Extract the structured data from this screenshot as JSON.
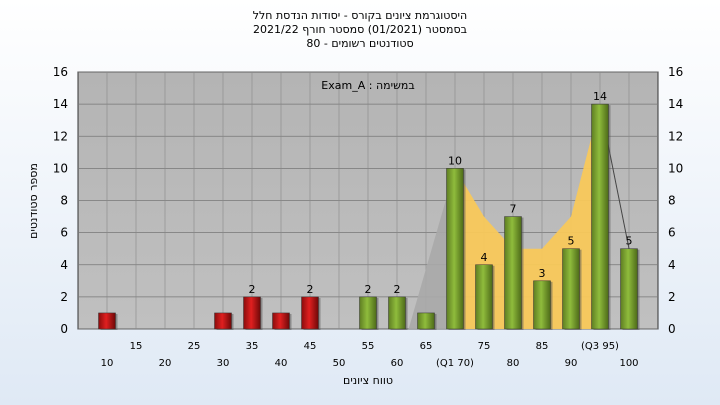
{
  "title_lines": [
    "היסטוגרמת ציונים בקורס - יסודות הנדסת חלל",
    "בסמסטר (01/2021) סמסטר חורף 2021/22",
    "סטודנטים רשומים - 80"
  ],
  "chart_data": {
    "type": "bar",
    "annotation": "במשימה : Exam_A",
    "xlabel": "טווח ציונים",
    "ylabel": "מספר סטודנטים",
    "ylim": [
      0,
      16
    ],
    "y_ticks": [
      0,
      2,
      4,
      6,
      8,
      10,
      12,
      14,
      16
    ],
    "grid": true,
    "x_tick_labels": [
      {
        "x": 10,
        "label": "10"
      },
      {
        "x": 15,
        "label": "15"
      },
      {
        "x": 20,
        "label": "20"
      },
      {
        "x": 25,
        "label": "25"
      },
      {
        "x": 30,
        "label": "30"
      },
      {
        "x": 35,
        "label": "35"
      },
      {
        "x": 40,
        "label": "40"
      },
      {
        "x": 45,
        "label": "45"
      },
      {
        "x": 50,
        "label": "50"
      },
      {
        "x": 55,
        "label": "55"
      },
      {
        "x": 60,
        "label": "60"
      },
      {
        "x": 65,
        "label": "65"
      },
      {
        "x": 70,
        "label": "(Q1 70)"
      },
      {
        "x": 75,
        "label": "75"
      },
      {
        "x": 80,
        "label": "80"
      },
      {
        "x": 85,
        "label": "85"
      },
      {
        "x": 90,
        "label": "90"
      },
      {
        "x": 95,
        "label": "(Q3 95)"
      },
      {
        "x": 100,
        "label": "100"
      }
    ],
    "bars": [
      {
        "x": 10,
        "value": 1,
        "label": "",
        "color": "red"
      },
      {
        "x": 30,
        "value": 1,
        "label": "",
        "color": "red"
      },
      {
        "x": 35,
        "value": 2,
        "label": "2",
        "color": "red"
      },
      {
        "x": 40,
        "value": 1,
        "label": "",
        "color": "red"
      },
      {
        "x": 45,
        "value": 2,
        "label": "2",
        "color": "red"
      },
      {
        "x": 55,
        "value": 2,
        "label": "2",
        "color": "green"
      },
      {
        "x": 60,
        "value": 2,
        "label": "2",
        "color": "green"
      },
      {
        "x": 65,
        "value": 1,
        "label": "",
        "color": "green"
      },
      {
        "x": 70,
        "value": 10,
        "label": "10",
        "color": "green"
      },
      {
        "x": 75,
        "value": 4,
        "label": "4",
        "color": "green"
      },
      {
        "x": 80,
        "value": 7,
        "label": "7",
        "color": "green"
      },
      {
        "x": 85,
        "value": 3,
        "label": "3",
        "color": "green"
      },
      {
        "x": 90,
        "value": 5,
        "label": "5",
        "color": "green"
      },
      {
        "x": 95,
        "value": 14,
        "label": "14",
        "color": "green"
      },
      {
        "x": 100,
        "value": 5,
        "label": "5",
        "color": "green"
      }
    ],
    "interquartile_area": [
      {
        "x": 70,
        "y": 10
      },
      {
        "x": 75,
        "y": 7
      },
      {
        "x": 80,
        "y": 5
      },
      {
        "x": 85,
        "y": 5
      },
      {
        "x": 90,
        "y": 7
      },
      {
        "x": 95,
        "y": 14
      }
    ],
    "colors": {
      "plot_bg": "#c0c0c0",
      "red_bar": "#e02020",
      "green_bar": "#8fbc3c",
      "area_fill": "#f8c85a",
      "grey_area": "#a8a8a8"
    }
  }
}
